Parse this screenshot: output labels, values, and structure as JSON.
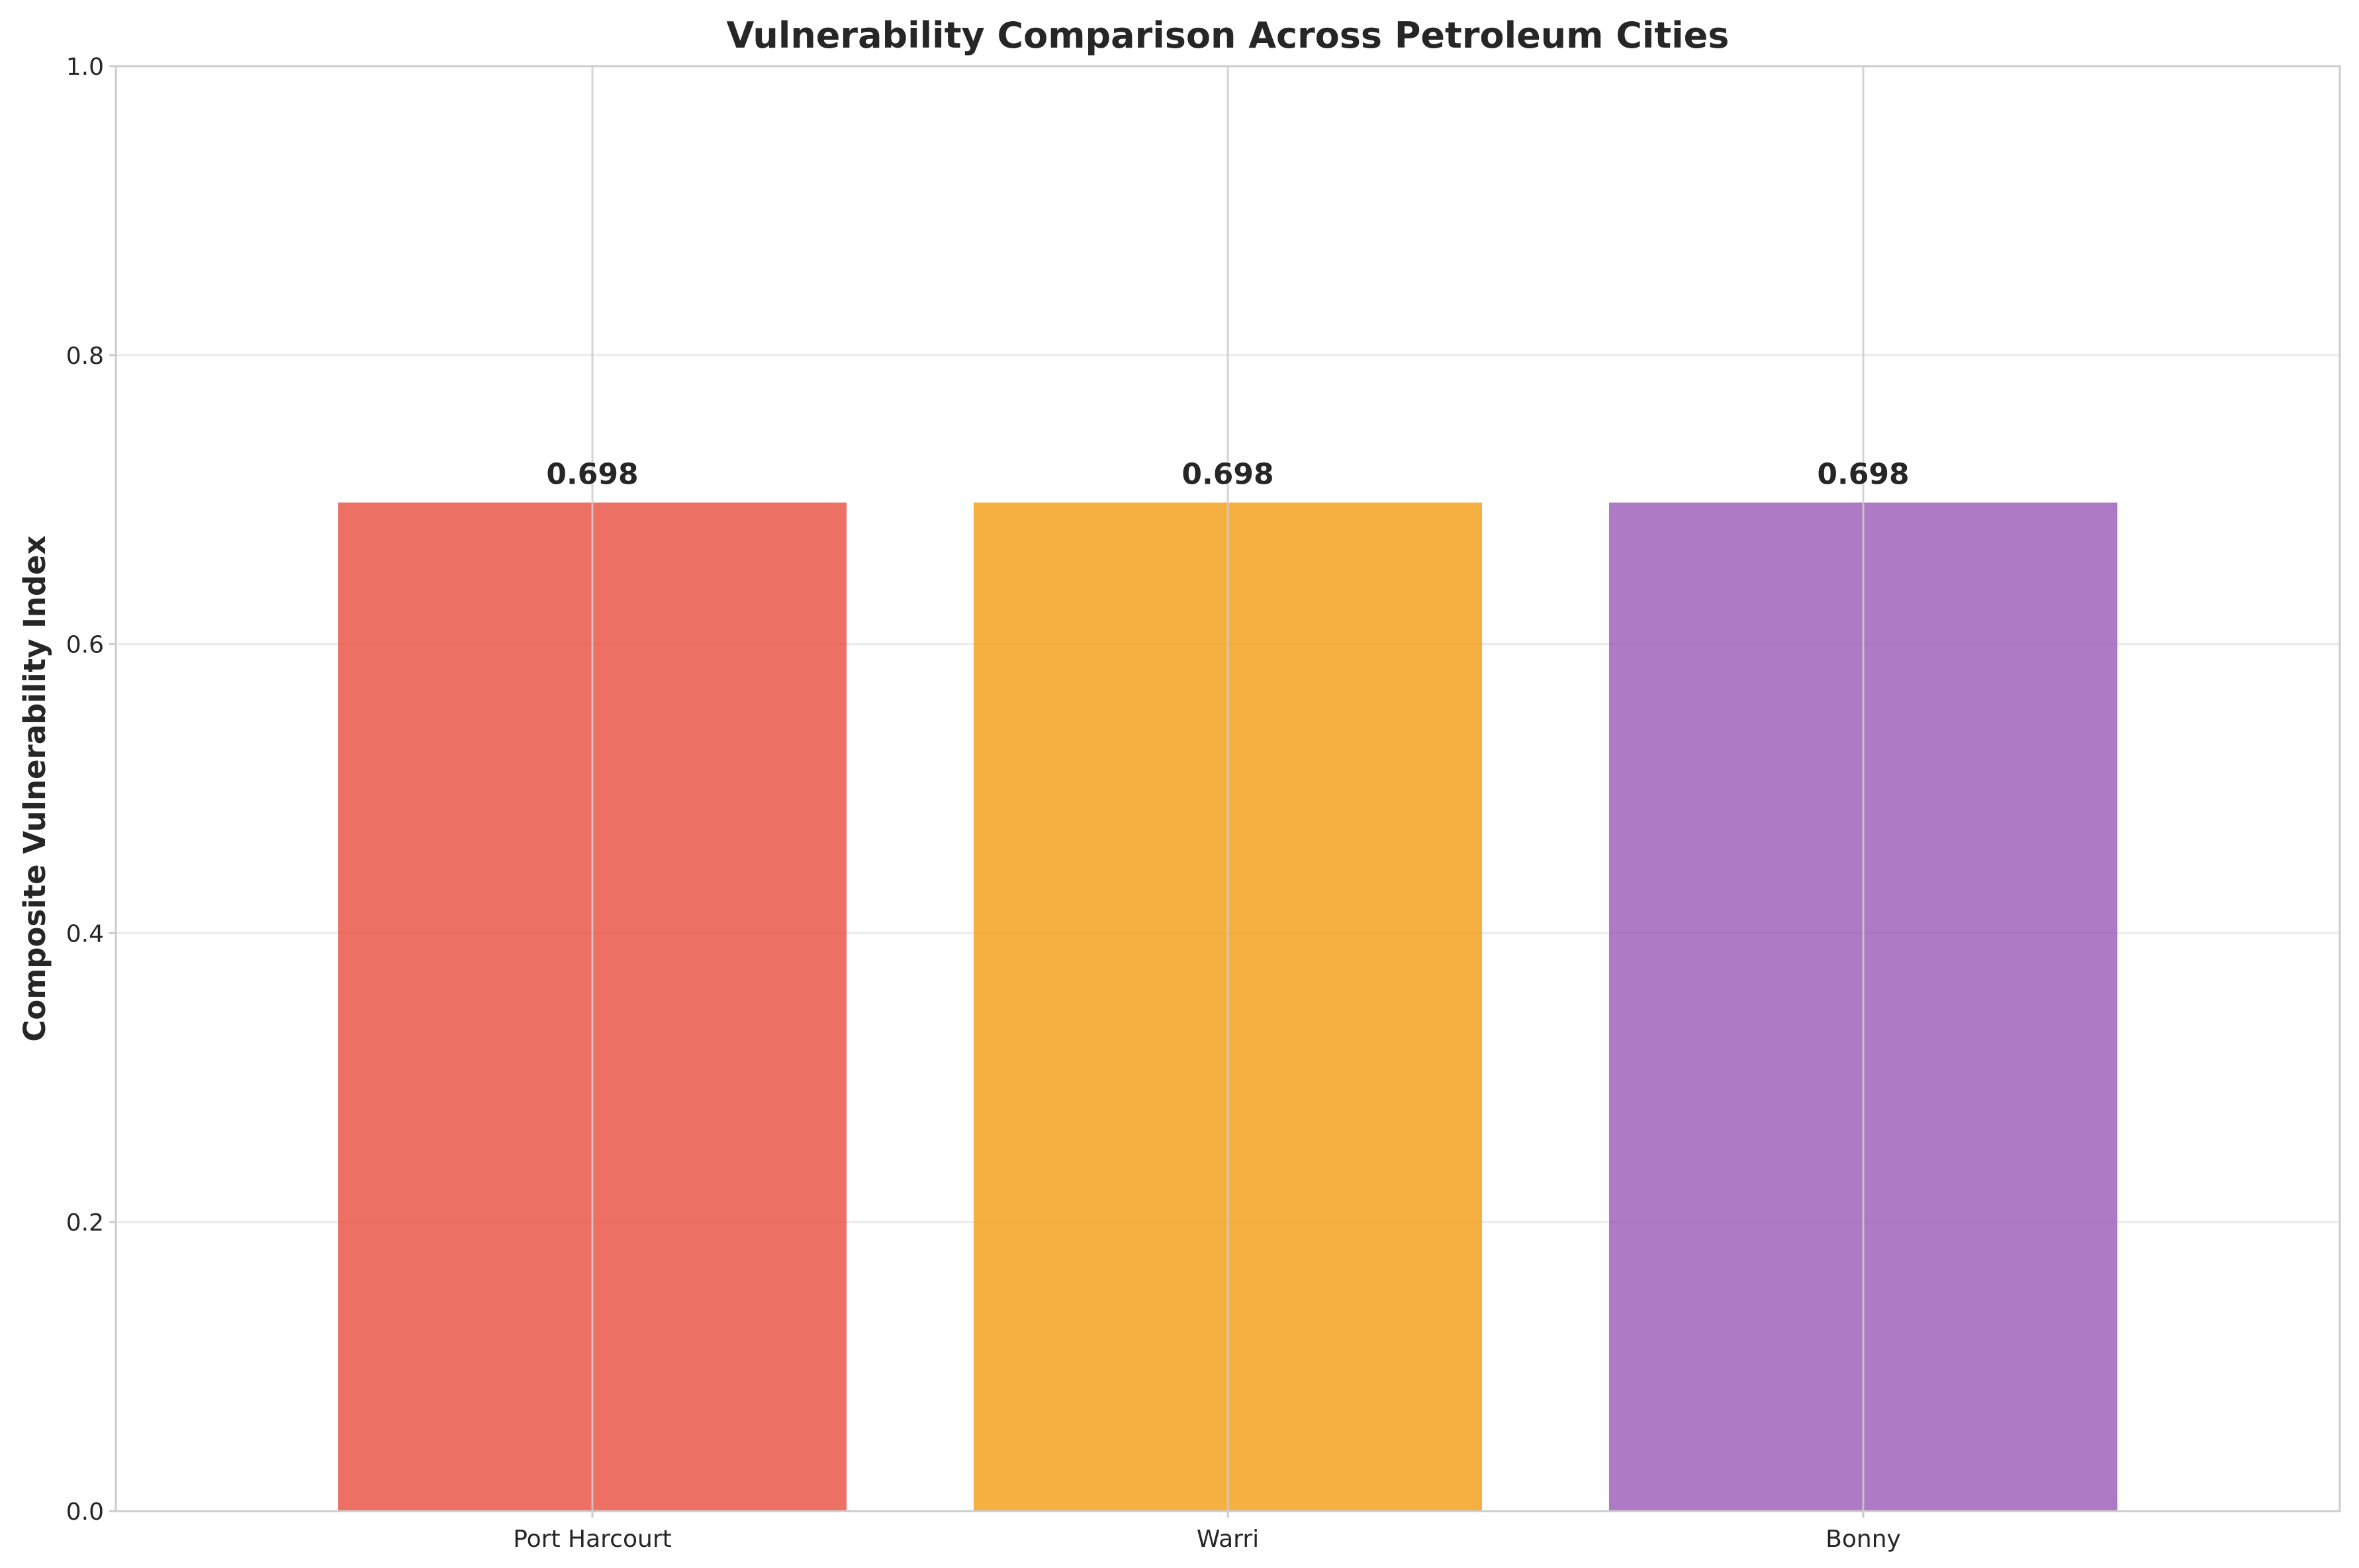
{
  "chart_data": {
    "type": "bar",
    "title": "Vulnerability Comparison Across Petroleum Cities",
    "xlabel": "",
    "ylabel": "Composite Vulnerability Index",
    "categories": [
      "Port Harcourt",
      "Warri",
      "Bonny"
    ],
    "values": [
      0.698,
      0.698,
      0.698
    ],
    "data_labels": [
      "0.698",
      "0.698",
      "0.698"
    ],
    "colors": [
      "#e74c3c",
      "#f39c12",
      "#9b59b6"
    ],
    "ylim": [
      0,
      1.0
    ],
    "yticks": [
      0.0,
      0.2,
      0.4,
      0.6,
      0.8,
      1.0
    ],
    "ytick_labels": [
      "0.0",
      "0.2",
      "0.4",
      "0.6",
      "0.8",
      "1.0"
    ],
    "grid": true,
    "legend": "none"
  }
}
